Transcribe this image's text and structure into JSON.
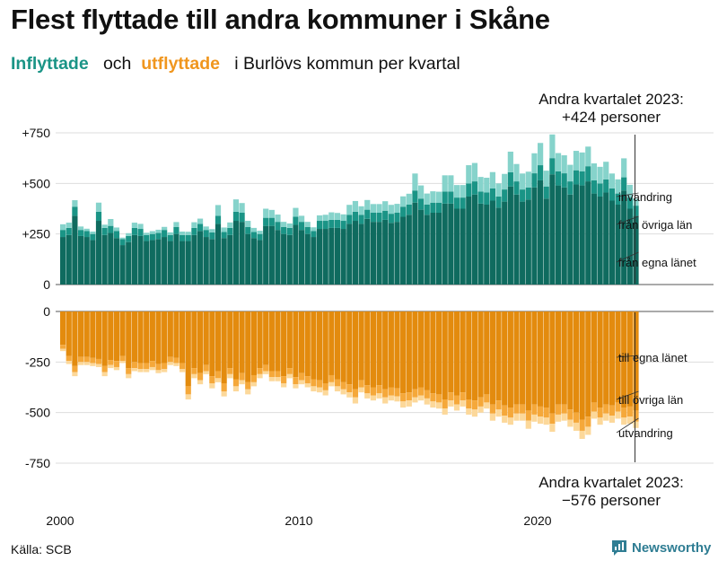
{
  "title": "Flest flyttade till andra kommuner i Skåne",
  "subtitle": {
    "in_label": "Inflyttade",
    "och": "och",
    "out_label": "utflyttade",
    "rest": "i Burlövs kommun per kvartal"
  },
  "source": "Källa: SCB",
  "brand": "Newsworthy",
  "colors": {
    "in_lan": "#0f6b5f",
    "in_ovriga": "#1a9486",
    "in_invandring": "#86d3cb",
    "out_lan": "#e38b0e",
    "out_ovriga": "#f5a83a",
    "out_utvandring": "#fcd89a",
    "grid": "#dddddd",
    "text": "#111111"
  },
  "chart_data": {
    "type": "bar",
    "stacked": true,
    "x_start_year": 2000,
    "x_end": "2023 Q2",
    "x_tick_labels": [
      "2000",
      "2010",
      "2020"
    ],
    "y_ticks_in": [
      "0",
      "+250",
      "+500",
      "+750"
    ],
    "y_ticks_out": [
      "0",
      "-250",
      "-500",
      "-750"
    ],
    "ylim_in": [
      0,
      750
    ],
    "ylim_out": [
      -750,
      0
    ],
    "grid": true,
    "series_labels_in": [
      "invandring",
      "från övriga län",
      "från egna länet"
    ],
    "series_labels_out": [
      "till egna länet",
      "till övriga län",
      "utvandring"
    ],
    "annotation_in": [
      "Andra kvartalet 2023:",
      "+424 personer"
    ],
    "annotation_out": [
      "Andra kvartalet 2023:",
      "−576 personer"
    ],
    "in_total": [
      298,
      306,
      417,
      287,
      276,
      262,
      405,
      296,
      324,
      282,
      232,
      254,
      306,
      300,
      256,
      264,
      271,
      285,
      258,
      309,
      262,
      261,
      308,
      326,
      287,
      274,
      393,
      282,
      307,
      421,
      403,
      315,
      280,
      266,
      375,
      369,
      346,
      310,
      302,
      379,
      340,
      310,
      283,
      342,
      345,
      357,
      354,
      347,
      394,
      413,
      387,
      418,
      398,
      398,
      412,
      394,
      399,
      436,
      449,
      549,
      490,
      450,
      461,
      459,
      540,
      540,
      492,
      492,
      590,
      601,
      532,
      528,
      556,
      500,
      547,
      657,
      596,
      549,
      558,
      649,
      700,
      563,
      742,
      650,
      639,
      592,
      661,
      653,
      682,
      599,
      582,
      607,
      549,
      520,
      624,
      493,
      424
    ],
    "in_ovriga": [
      270,
      280,
      385,
      270,
      265,
      250,
      360,
      280,
      290,
      265,
      225,
      240,
      280,
      275,
      245,
      250,
      255,
      270,
      245,
      285,
      245,
      245,
      280,
      300,
      270,
      258,
      340,
      260,
      280,
      360,
      355,
      285,
      260,
      250,
      330,
      330,
      310,
      285,
      280,
      335,
      310,
      285,
      265,
      315,
      315,
      320,
      320,
      315,
      345,
      360,
      345,
      370,
      355,
      355,
      365,
      350,
      355,
      385,
      395,
      465,
      425,
      395,
      405,
      405,
      460,
      460,
      430,
      430,
      500,
      510,
      460,
      455,
      475,
      435,
      470,
      555,
      510,
      470,
      480,
      550,
      590,
      485,
      625,
      560,
      550,
      510,
      565,
      560,
      585,
      515,
      500,
      520,
      475,
      450,
      530,
      430,
      390
    ],
    "in_lan": [
      235,
      245,
      340,
      240,
      235,
      220,
      315,
      245,
      255,
      230,
      195,
      210,
      245,
      240,
      215,
      220,
      225,
      235,
      215,
      250,
      215,
      215,
      245,
      265,
      235,
      225,
      300,
      230,
      245,
      315,
      310,
      250,
      230,
      220,
      290,
      290,
      270,
      250,
      245,
      295,
      270,
      250,
      235,
      275,
      275,
      280,
      280,
      275,
      300,
      315,
      300,
      325,
      310,
      310,
      320,
      305,
      310,
      335,
      345,
      405,
      370,
      345,
      355,
      355,
      400,
      400,
      375,
      375,
      435,
      445,
      400,
      395,
      415,
      380,
      410,
      485,
      445,
      410,
      420,
      480,
      515,
      425,
      545,
      490,
      480,
      445,
      495,
      490,
      510,
      450,
      435,
      455,
      415,
      395,
      465,
      375,
      340
    ],
    "out_total": [
      -196,
      -260,
      -320,
      -265,
      -265,
      -270,
      -275,
      -320,
      -280,
      -290,
      -255,
      -330,
      -295,
      -300,
      -300,
      -290,
      -305,
      -300,
      -265,
      -270,
      -300,
      -435,
      -330,
      -360,
      -310,
      -380,
      -350,
      -420,
      -330,
      -395,
      -360,
      -410,
      -370,
      -330,
      -310,
      -345,
      -345,
      -375,
      -330,
      -380,
      -360,
      -375,
      -395,
      -400,
      -415,
      -370,
      -395,
      -410,
      -425,
      -455,
      -400,
      -430,
      -440,
      -430,
      -455,
      -440,
      -445,
      -475,
      -470,
      -450,
      -440,
      -460,
      -475,
      -480,
      -510,
      -470,
      -490,
      -470,
      -510,
      -520,
      -500,
      -480,
      -540,
      -520,
      -550,
      -560,
      -540,
      -540,
      -580,
      -545,
      -555,
      -560,
      -595,
      -545,
      -540,
      -570,
      -590,
      -630,
      -610,
      -530,
      -560,
      -540,
      -550,
      -530,
      -560,
      -555,
      -576
    ],
    "out_lan": [
      -165,
      -220,
      -270,
      -225,
      -225,
      -230,
      -235,
      -270,
      -240,
      -245,
      -220,
      -280,
      -250,
      -255,
      -255,
      -245,
      -260,
      -255,
      -225,
      -230,
      -255,
      -370,
      -280,
      -305,
      -265,
      -320,
      -295,
      -355,
      -280,
      -335,
      -305,
      -350,
      -315,
      -280,
      -265,
      -295,
      -295,
      -320,
      -280,
      -325,
      -305,
      -320,
      -335,
      -340,
      -355,
      -315,
      -335,
      -350,
      -360,
      -385,
      -340,
      -365,
      -375,
      -365,
      -385,
      -375,
      -380,
      -405,
      -400,
      -385,
      -375,
      -390,
      -405,
      -410,
      -435,
      -400,
      -415,
      -400,
      -435,
      -440,
      -425,
      -410,
      -460,
      -440,
      -465,
      -475,
      -460,
      -460,
      -490,
      -460,
      -470,
      -475,
      -505,
      -460,
      -460,
      -485,
      -500,
      -535,
      -520,
      -450,
      -475,
      -460,
      -465,
      -450,
      -475,
      -470,
      -490
    ],
    "out_ovriga": [
      -185,
      -245,
      -300,
      -250,
      -250,
      -255,
      -260,
      -300,
      -265,
      -275,
      -245,
      -310,
      -280,
      -285,
      -285,
      -275,
      -290,
      -285,
      -250,
      -255,
      -285,
      -410,
      -310,
      -340,
      -295,
      -355,
      -330,
      -395,
      -310,
      -370,
      -340,
      -385,
      -350,
      -310,
      -295,
      -325,
      -325,
      -355,
      -310,
      -360,
      -340,
      -355,
      -370,
      -375,
      -390,
      -350,
      -370,
      -385,
      -400,
      -425,
      -375,
      -405,
      -415,
      -405,
      -425,
      -415,
      -420,
      -445,
      -440,
      -425,
      -415,
      -430,
      -445,
      -450,
      -480,
      -440,
      -460,
      -440,
      -480,
      -485,
      -470,
      -450,
      -505,
      -485,
      -515,
      -525,
      -505,
      -505,
      -540,
      -510,
      -520,
      -525,
      -555,
      -510,
      -505,
      -535,
      -550,
      -590,
      -570,
      -495,
      -525,
      -505,
      -515,
      -495,
      -525,
      -520,
      -545
    ]
  }
}
